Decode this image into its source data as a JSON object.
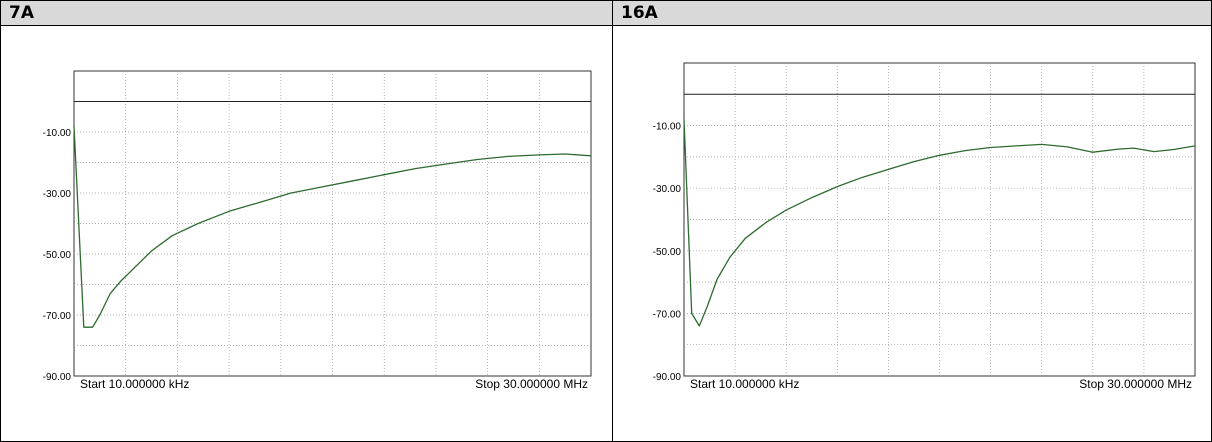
{
  "panels": [
    {
      "title": "7A"
    },
    {
      "title": "16A"
    }
  ],
  "chart_data": [
    {
      "type": "line",
      "title": "7A",
      "ylim": [
        -90,
        10
      ],
      "y_ticks": [
        "-10.00",
        "-30.00",
        "-50.00",
        "-70.00",
        "-90.00"
      ],
      "x_start_label": "Start 10.000000 kHz",
      "x_stop_label": "Stop 30.000000 MHz",
      "grid": true,
      "reference_level": 0,
      "series": [
        {
          "color": "#2e6b2e",
          "x": [
            0,
            0.019,
            0.036,
            0.05,
            0.07,
            0.09,
            0.12,
            0.15,
            0.19,
            0.24,
            0.3,
            0.36,
            0.42,
            0.48,
            0.54,
            0.6,
            0.66,
            0.72,
            0.78,
            0.84,
            0.9,
            0.95,
            1.0
          ],
          "y": [
            -8,
            -74,
            -74,
            -70,
            -63,
            -59,
            -54,
            -49,
            -44,
            -40,
            -36,
            -33,
            -30,
            -28,
            -26,
            -24,
            -22,
            -20.5,
            -19,
            -18,
            -17.5,
            -17.2,
            -17.8
          ]
        }
      ]
    },
    {
      "type": "line",
      "title": "16A",
      "ylim": [
        -90,
        10
      ],
      "y_ticks": [
        "-10.00",
        "-30.00",
        "-50.00",
        "-70.00",
        "-90.00"
      ],
      "x_start_label": "Start 10.000000 kHz",
      "x_stop_label": "Stop 30.000000 MHz",
      "grid": true,
      "reference_level": 0,
      "series": [
        {
          "color": "#2e6b2e",
          "x": [
            0,
            0.015,
            0.03,
            0.045,
            0.065,
            0.09,
            0.12,
            0.16,
            0.2,
            0.25,
            0.3,
            0.35,
            0.4,
            0.45,
            0.5,
            0.55,
            0.6,
            0.65,
            0.7,
            0.75,
            0.8,
            0.85,
            0.88,
            0.92,
            0.96,
            1.0
          ],
          "y": [
            -8,
            -70,
            -74,
            -68,
            -59,
            -52,
            -46,
            -41,
            -37,
            -33,
            -29.5,
            -26.5,
            -24,
            -21.5,
            -19.5,
            -18,
            -17,
            -16.5,
            -16,
            -16.8,
            -18.5,
            -17.5,
            -17.2,
            -18.3,
            -17.6,
            -16.5
          ]
        }
      ]
    }
  ]
}
